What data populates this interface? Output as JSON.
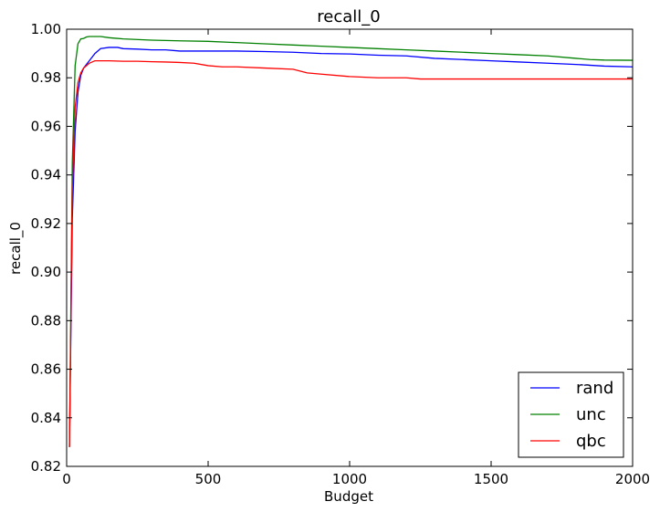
{
  "chart_data": {
    "type": "line",
    "title": "recall_0",
    "xlabel": "Budget",
    "ylabel": "recall_0",
    "xlim": [
      0,
      2000
    ],
    "ylim": [
      0.82,
      1.0
    ],
    "xticks": [
      0,
      500,
      1000,
      1500,
      2000
    ],
    "xtick_labels": [
      "0",
      "500",
      "1000",
      "1500",
      "2000"
    ],
    "yticks": [
      0.82,
      0.84,
      0.86,
      0.88,
      0.9,
      0.92,
      0.94,
      0.96,
      0.98,
      1.0
    ],
    "ytick_labels": [
      "0.82",
      "0.84",
      "0.86",
      "0.88",
      "0.90",
      "0.92",
      "0.94",
      "0.96",
      "0.98",
      "1.00"
    ],
    "grid": false,
    "legend_position": "lower-right",
    "series": [
      {
        "name": "rand",
        "color": "#0000ff",
        "x": [
          10,
          20,
          30,
          40,
          50,
          60,
          80,
          100,
          120,
          150,
          180,
          200,
          250,
          300,
          350,
          400,
          450,
          500,
          600,
          700,
          800,
          900,
          1000,
          1100,
          1200,
          1300,
          1400,
          1500,
          1600,
          1700,
          1800,
          1900,
          2000
        ],
        "y": [
          0.828,
          0.922,
          0.958,
          0.974,
          0.981,
          0.984,
          0.987,
          0.99,
          0.992,
          0.9925,
          0.9925,
          0.992,
          0.9918,
          0.9915,
          0.9915,
          0.991,
          0.991,
          0.991,
          0.991,
          0.9908,
          0.9905,
          0.99,
          0.9898,
          0.9893,
          0.989,
          0.988,
          0.9875,
          0.987,
          0.9865,
          0.986,
          0.9855,
          0.9848,
          0.9845
        ]
      },
      {
        "name": "unc",
        "color": "#008000",
        "x": [
          10,
          20,
          30,
          40,
          50,
          60,
          70,
          80,
          100,
          120,
          150,
          200,
          300,
          400,
          500,
          600,
          700,
          800,
          900,
          1000,
          1100,
          1200,
          1300,
          1400,
          1500,
          1600,
          1700,
          1800,
          1850,
          1900,
          2000
        ],
        "y": [
          0.828,
          0.945,
          0.985,
          0.994,
          0.996,
          0.9962,
          0.9968,
          0.997,
          0.997,
          0.997,
          0.9965,
          0.996,
          0.9955,
          0.9952,
          0.995,
          0.9945,
          0.994,
          0.9935,
          0.993,
          0.9925,
          0.992,
          0.9915,
          0.991,
          0.9905,
          0.99,
          0.9895,
          0.989,
          0.988,
          0.9875,
          0.9873,
          0.9872
        ]
      },
      {
        "name": "qbc",
        "color": "#ff0000",
        "x": [
          10,
          20,
          30,
          40,
          50,
          60,
          80,
          100,
          120,
          150,
          200,
          250,
          300,
          350,
          400,
          450,
          500,
          550,
          600,
          700,
          800,
          850,
          900,
          1000,
          1100,
          1200,
          1250,
          1300,
          1400,
          1500,
          1600,
          1700,
          1800,
          1900,
          2000
        ],
        "y": [
          0.828,
          0.935,
          0.968,
          0.978,
          0.982,
          0.984,
          0.986,
          0.987,
          0.987,
          0.987,
          0.9868,
          0.9868,
          0.9866,
          0.9865,
          0.9863,
          0.986,
          0.985,
          0.9845,
          0.9845,
          0.984,
          0.9835,
          0.982,
          0.9815,
          0.9805,
          0.98,
          0.98,
          0.9795,
          0.9795,
          0.9795,
          0.9795,
          0.9795,
          0.9795,
          0.9795,
          0.9795,
          0.9795
        ]
      }
    ]
  }
}
